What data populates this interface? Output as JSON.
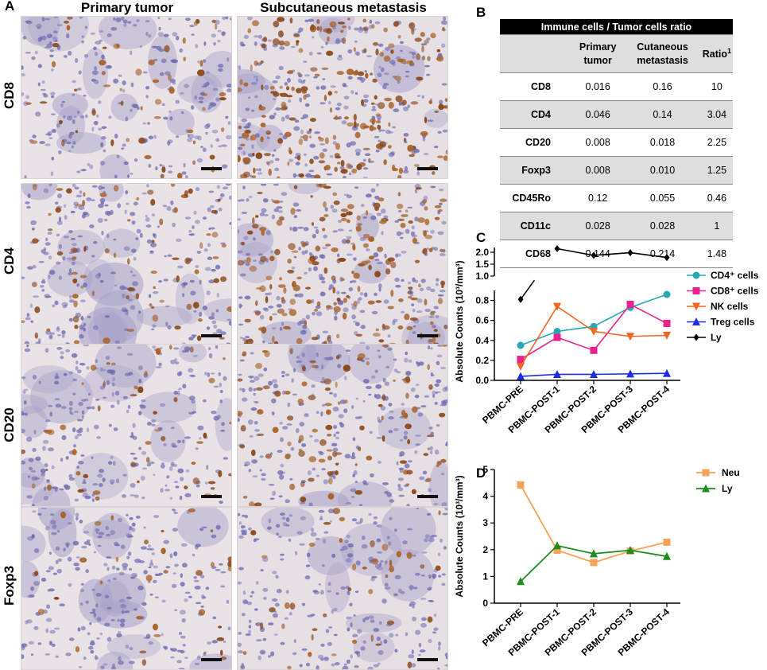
{
  "panel_a": {
    "label": "A",
    "col_titles": [
      "Primary tumor",
      "Subcutaneous metastasis"
    ],
    "row_labels": [
      "CD8",
      "CD4",
      "CD20",
      "Foxp3"
    ]
  },
  "panel_b": {
    "label": "B",
    "title": "Immune cells / Tumor cells ratio",
    "headers": [
      "",
      "Primary tumor",
      "Cutaneous metastasis",
      "Ratio"
    ],
    "ratio_superscript": "1",
    "rows": [
      [
        "CD8",
        "0.016",
        "0.16",
        "10"
      ],
      [
        "CD4",
        "0.046",
        "0.14",
        "3.04"
      ],
      [
        "CD20",
        "0.008",
        "0.018",
        "2.25"
      ],
      [
        "Foxp3",
        "0.008",
        "0.010",
        "1.25"
      ],
      [
        "CD45Ro",
        "0.12",
        "0.055",
        "0.46"
      ],
      [
        "CD11c",
        "0.028",
        "0.028",
        "1"
      ],
      [
        "CD68",
        "0.144",
        "0.214",
        "1.48"
      ]
    ]
  },
  "panel_c_label": "C",
  "panel_d_label": "D",
  "chart_data": [
    {
      "type": "line",
      "panel": "C",
      "categories": [
        "PBMC-PRE",
        "PBMC-POST-1",
        "PBMC-POST-2",
        "PBMC-POST-3",
        "PBMC-POST-4"
      ],
      "ylabel": "Absolute Counts (10³/mm³)",
      "y_axis_break": true,
      "ylim_lower": [
        0,
        0.9
      ],
      "ylim_upper": [
        1.0,
        2.2
      ],
      "yticks_lower": [
        "0.0",
        "0.2",
        "0.4",
        "0.6",
        "0.8"
      ],
      "yticks_upper": [
        "1.0",
        "1.5",
        "2.0"
      ],
      "legend_position": "right",
      "series": [
        {
          "name": "CD4⁺ cells",
          "color": "#26a9b5",
          "marker": "circle",
          "values": [
            0.35,
            0.49,
            0.54,
            0.73,
            0.86
          ]
        },
        {
          "name": "CD8⁺ cells",
          "color": "#e8218c",
          "marker": "square",
          "values": [
            0.21,
            0.43,
            0.3,
            0.76,
            0.57
          ]
        },
        {
          "name": "NK cells",
          "color": "#f26522",
          "marker": "triangle-down",
          "values": [
            0.14,
            0.74,
            0.49,
            0.44,
            0.45
          ]
        },
        {
          "name": "Treg cells",
          "color": "#1a2ee6",
          "marker": "triangle-up",
          "values": [
            0.04,
            0.06,
            0.06,
            0.065,
            0.07
          ]
        },
        {
          "name": "Ly",
          "color": "#000000",
          "marker": "diamond",
          "values": [
            0.81,
            2.15,
            1.87,
            1.98,
            1.78
          ]
        }
      ]
    },
    {
      "type": "line",
      "panel": "D",
      "categories": [
        "PBMC-PRE",
        "PBMC-POST-1",
        "PBMC-POST-2",
        "PBMC-POST-3",
        "PBMC-POST-4"
      ],
      "ylabel": "Absolute Counts (10³/mm³)",
      "ylim": [
        0,
        5
      ],
      "yticks": [
        "0",
        "1",
        "2",
        "3",
        "4",
        "5"
      ],
      "legend_position": "top-right",
      "series": [
        {
          "name": "Neu",
          "color": "#f7a258",
          "marker": "square",
          "values": [
            4.42,
            1.98,
            1.52,
            1.95,
            2.28
          ]
        },
        {
          "name": "Ly",
          "color": "#1e8c1e",
          "marker": "triangle-up",
          "values": [
            0.81,
            2.15,
            1.85,
            1.98,
            1.75
          ]
        }
      ]
    }
  ]
}
